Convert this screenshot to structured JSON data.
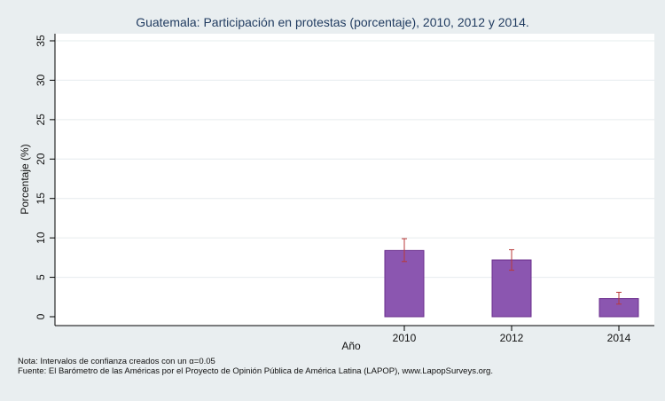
{
  "chart_data": {
    "type": "bar",
    "title": "Guatemala: Participación en protestas (porcentaje), 2010, 2012 y 2014.",
    "xlabel": "Año",
    "ylabel": "Porcentaje (%)",
    "categories": [
      "2010",
      "2012",
      "2014"
    ],
    "values": [
      8.4,
      7.2,
      2.3
    ],
    "ci_low": [
      7.0,
      5.9,
      1.6
    ],
    "ci_high": [
      9.9,
      8.5,
      3.1
    ],
    "ylim": [
      0,
      35
    ],
    "yticks": [
      "0",
      "5",
      "10",
      "15",
      "20",
      "25",
      "30",
      "35"
    ],
    "grid": true,
    "bar_color": "#8b56b0",
    "bar_edge_color": "#6a2c8c",
    "error_color": "#b83a3a",
    "background_color": "#e9eef0",
    "plot_background_color": "#ffffff"
  },
  "notes": {
    "line1": "Nota: Intervalos de confianza creados con un α=0.05",
    "line2": "Fuente: El Barómetro de las Américas por el Proyecto de Opinión Pública de América Latina (LAPOP), www.LapopSurveys.org."
  }
}
